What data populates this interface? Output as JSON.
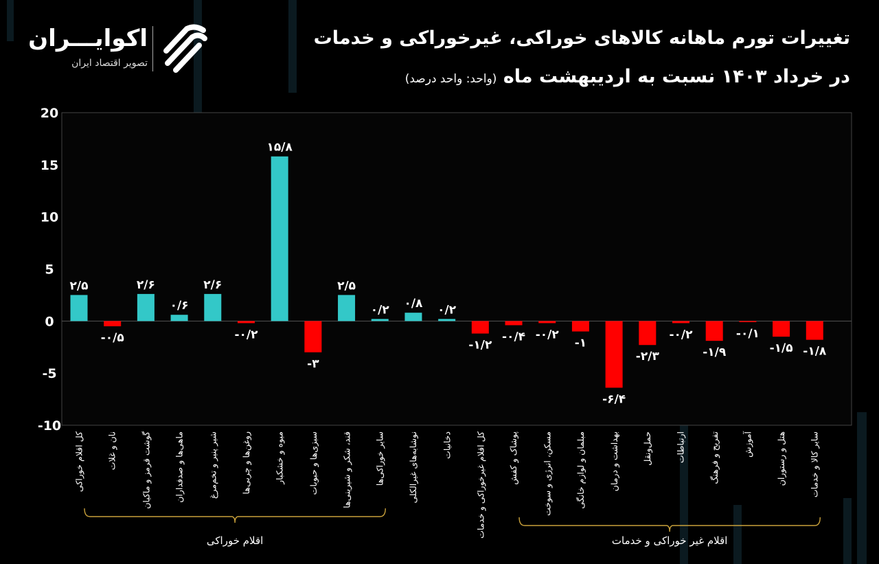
{
  "header": {
    "title_line1": "تغییرات تورم ماهانه کالاهای خوراکی، غیرخوراکی و خدمات",
    "title_line2": "در خرداد ۱۴۰۳ نسبت به اردیبهشت ماه",
    "unit_note": "(واحد: واحد درصد)"
  },
  "logo": {
    "name": "اکوایـــران",
    "tagline": "تصویر اقتصاد ایران"
  },
  "colors": {
    "positive": "#33c8c8",
    "negative": "#ff0000",
    "bracket": "#c9a13b",
    "background": "#000000"
  },
  "chart_data": {
    "type": "bar",
    "title": "تغییرات تورم ماهانه کالاهای خوراکی، غیرخوراکی و خدمات در خرداد ۱۴۰۳ نسبت به اردیبهشت ماه",
    "ylabel": "",
    "xlabel": "",
    "ylim": [
      -10,
      20
    ],
    "yticks": [
      20,
      15,
      10,
      5,
      0,
      -5,
      -10
    ],
    "grid": false,
    "categories": [
      "کل اقلام خوراکی",
      "نان و غلات",
      "گوشت قرمز و ماکیان",
      "ماهی‌ها و صدفداران",
      "شیر پنیر و تخم‌مرغ",
      "روغن‌ها و چربی‌ها",
      "میوه و خشکبار",
      "سبزی‌ها و حبوبات",
      "قند، شکر و شیرینی‌ها",
      "سایر خوراکی‌ها",
      "نوشابه‌های غیرالکلی",
      "دخانیات",
      "کل اقلام غیرخوراکی و خدمات",
      "پوشاک و کفش",
      "مسکن، انرژی و سوخت",
      "مبلمان و لوازم خانگی",
      "بهداشت و درمان",
      "حمل‌ونقل",
      "ارتباطات",
      "تفریح و فرهنگ",
      "آموزش",
      "هتل و رستوران",
      "سایر کالا و خدمات"
    ],
    "values": [
      2.5,
      -0.5,
      2.6,
      0.6,
      2.6,
      -0.2,
      15.8,
      -3,
      2.5,
      0.2,
      0.8,
      0.2,
      -1.2,
      -0.4,
      -0.2,
      -1,
      -6.4,
      -2.3,
      -0.2,
      -1.9,
      -0.1,
      -1.5,
      -1.8
    ],
    "data_labels": [
      "۲/۵",
      "-۰/۵",
      "۲/۶",
      "۰/۶",
      "۲/۶",
      "-۰/۲",
      "۱۵/۸",
      "-۳",
      "۲/۵",
      "۰/۲",
      "۰/۸",
      "۰/۲",
      "-۱/۲",
      "-۰/۴",
      "-۰/۲",
      "-۱",
      "-۶/۴",
      "-۲/۳",
      "-۰/۲",
      "-۱/۹",
      "-۰/۱",
      "-۱/۵",
      "-۱/۸"
    ],
    "groups": [
      {
        "label": "اقلام خوراکی",
        "from": 0,
        "to": 9
      },
      {
        "label": "اقلام غیر خوراکی و خدمات",
        "from": 13,
        "to": 22
      }
    ]
  }
}
